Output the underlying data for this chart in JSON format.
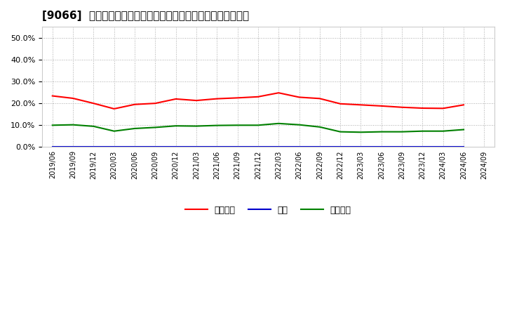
{
  "title": "[9066]  売上債権、在庫、買入債務の総資産に対する比率の推移",
  "dates": [
    "2019/06",
    "2019/09",
    "2019/12",
    "2020/03",
    "2020/06",
    "2020/09",
    "2020/12",
    "2021/03",
    "2021/06",
    "2021/09",
    "2021/12",
    "2022/03",
    "2022/06",
    "2022/09",
    "2022/12",
    "2023/03",
    "2023/06",
    "2023/09",
    "2023/12",
    "2024/03",
    "2024/06",
    "2024/09"
  ],
  "receivables": [
    0.234,
    0.223,
    0.2,
    0.175,
    0.195,
    0.2,
    0.22,
    0.213,
    0.221,
    0.225,
    0.23,
    0.248,
    0.228,
    0.222,
    0.198,
    0.193,
    0.188,
    0.182,
    0.178,
    0.177,
    0.193,
    null
  ],
  "inventory": [
    0.001,
    0.001,
    0.001,
    0.001,
    0.001,
    0.001,
    0.001,
    0.001,
    0.001,
    0.001,
    0.001,
    0.001,
    0.001,
    0.001,
    0.001,
    0.001,
    0.001,
    0.001,
    0.001,
    0.001,
    0.001,
    null
  ],
  "payables": [
    0.1,
    0.102,
    0.095,
    0.073,
    0.085,
    0.09,
    0.097,
    0.096,
    0.099,
    0.1,
    0.1,
    0.108,
    0.102,
    0.092,
    0.07,
    0.068,
    0.07,
    0.07,
    0.073,
    0.073,
    0.08,
    null
  ],
  "line_colors": {
    "receivables": "#ff0000",
    "inventory": "#0000cc",
    "payables": "#008000"
  },
  "legend_labels": [
    "売上債権",
    "在庫",
    "買入債務"
  ],
  "ylim": [
    0.0,
    0.55
  ],
  "yticks": [
    0.0,
    0.1,
    0.2,
    0.3,
    0.4,
    0.5
  ],
  "background_color": "#ffffff",
  "plot_bg_color": "#ffffff",
  "grid_color": "#aaaaaa",
  "title_fontsize": 11
}
